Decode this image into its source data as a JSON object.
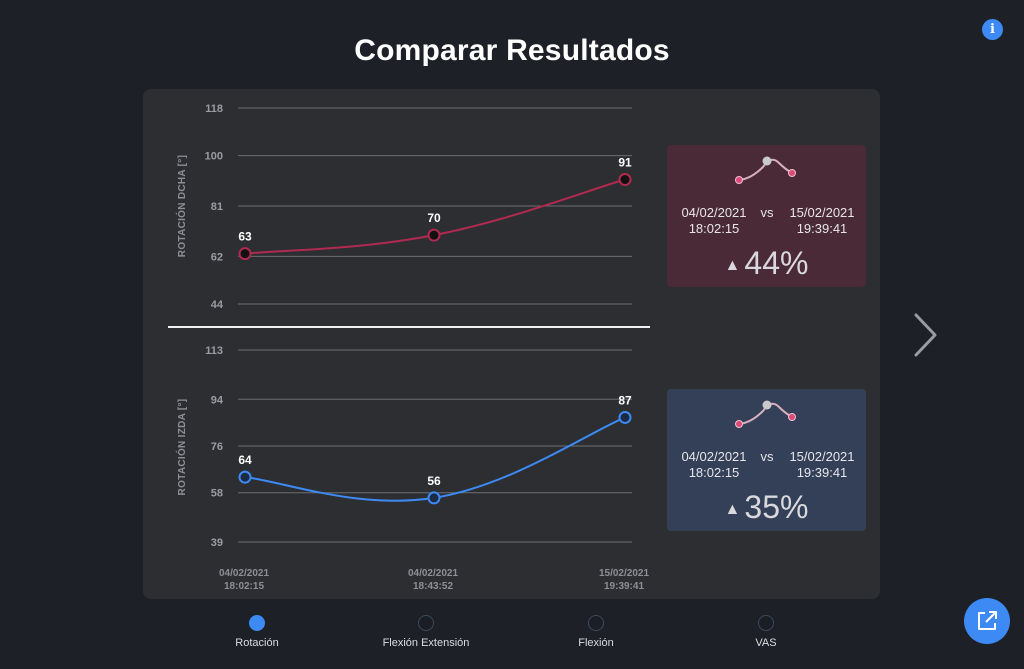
{
  "title": "Comparar Resultados",
  "info_icon_char": "i",
  "chart_data": [
    {
      "type": "line",
      "ylabel": "ROTACIÓN DCHA [°]",
      "yticks": [
        118,
        100,
        81,
        62,
        44
      ],
      "ylim": [
        44,
        118
      ],
      "x": [
        "04/02/2021 18:02:15",
        "04/02/2021 18:43:52",
        "15/02/2021 19:39:41"
      ],
      "values": [
        63,
        70,
        91
      ],
      "color": "#b02a4f"
    },
    {
      "type": "line",
      "ylabel": "ROTACIÓN IZDA [°]",
      "yticks": [
        113,
        94,
        76,
        58,
        39
      ],
      "ylim": [
        39,
        113
      ],
      "x": [
        "04/02/2021 18:02:15",
        "04/02/2021 18:43:52",
        "15/02/2021 19:39:41"
      ],
      "values": [
        64,
        56,
        87
      ],
      "color": "#3d8af5"
    }
  ],
  "x_axis": {
    "labels": [
      {
        "date": "04/02/2021",
        "time": "18:02:15"
      },
      {
        "date": "04/02/2021",
        "time": "18:43:52"
      },
      {
        "date": "15/02/2021",
        "time": "19:39:41"
      }
    ]
  },
  "cards": [
    {
      "date1": "04/02/2021",
      "time1": "18:02:15",
      "vs": "vs",
      "date2": "15/02/2021",
      "time2": "19:39:41",
      "arrow": "▲",
      "percent": "44%",
      "bg": "#4a2a36"
    },
    {
      "date1": "04/02/2021",
      "time1": "18:02:15",
      "vs": "vs",
      "date2": "15/02/2021",
      "time2": "19:39:41",
      "arrow": "▲",
      "percent": "35%",
      "bg": "#343f58"
    }
  ],
  "pagination": {
    "items": [
      {
        "label": "Rotación",
        "active": true
      },
      {
        "label": "Flexión Extensión",
        "active": false
      },
      {
        "label": "Flexión",
        "active": false
      },
      {
        "label": "VAS",
        "active": false
      }
    ]
  },
  "colors": {
    "accent": "#3d8af5",
    "red_series": "#b02a4f",
    "panel": "#2c2e32",
    "background": "#1d2026"
  }
}
